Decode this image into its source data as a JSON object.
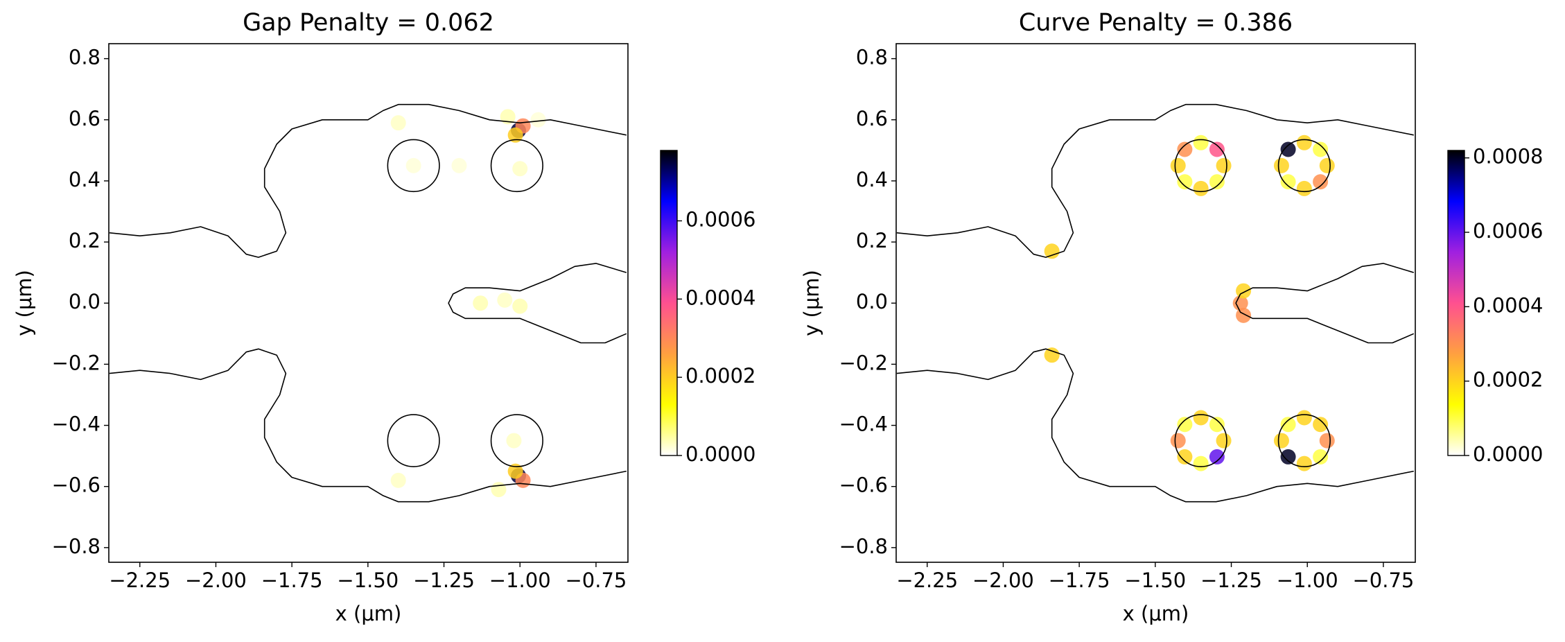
{
  "chart_data": [
    {
      "type": "heatmap",
      "title": "Gap Penalty = 0.062",
      "xlabel": "x (μm)",
      "ylabel": "y (μm)",
      "xlim": [
        -2.352,
        -0.645
      ],
      "ylim": [
        -0.848,
        0.849
      ],
      "xticks": [
        {
          "value": -2.25,
          "label": "−2.25"
        },
        {
          "value": -2,
          "label": "−2.00"
        },
        {
          "value": -1.75,
          "label": "−1.75"
        },
        {
          "value": -1.5,
          "label": "−1.50"
        },
        {
          "value": -1.25,
          "label": "−1.25"
        },
        {
          "value": -1,
          "label": "−1.00"
        },
        {
          "value": -0.75,
          "label": "−0.75"
        }
      ],
      "yticks": [
        {
          "value": -0.8,
          "label": "−0.8"
        },
        {
          "value": -0.6,
          "label": "−0.6"
        },
        {
          "value": -0.4,
          "label": "−0.4"
        },
        {
          "value": -0.2,
          "label": "−0.2"
        },
        {
          "value": 0,
          "label": "0.0"
        },
        0.2,
        0.4,
        0.6,
        0.8
      ],
      "contours": [
        {
          "x": [
            -2.35,
            -2.25,
            -2.15,
            -2.05,
            -1.96,
            -1.9,
            -1.86,
            -1.8,
            -1.77,
            -1.79,
            -1.84,
            -1.84,
            -1.8,
            -1.75,
            -1.65,
            -1.5,
            -1.45,
            -1.4,
            -1.3,
            -1.2,
            -1.1,
            -1.0,
            -0.9,
            -0.8,
            -0.65
          ],
          "y": [
            0.23,
            0.22,
            0.23,
            0.25,
            0.22,
            0.16,
            0.15,
            0.17,
            0.23,
            0.3,
            0.38,
            0.44,
            0.52,
            0.57,
            0.6,
            0.6,
            0.63,
            0.65,
            0.65,
            0.63,
            0.6,
            0.59,
            0.6,
            0.58,
            0.55
          ]
        },
        {
          "x": [
            -2.35,
            -2.25,
            -2.15,
            -2.05,
            -1.96,
            -1.9,
            -1.86,
            -1.8,
            -1.77,
            -1.79,
            -1.84,
            -1.84,
            -1.8,
            -1.75,
            -1.65,
            -1.5,
            -1.45,
            -1.4,
            -1.3,
            -1.2,
            -1.1,
            -1.0,
            -0.9,
            -0.8,
            -0.65
          ],
          "y": [
            -0.23,
            -0.22,
            -0.23,
            -0.25,
            -0.22,
            -0.16,
            -0.15,
            -0.17,
            -0.23,
            -0.3,
            -0.38,
            -0.44,
            -0.52,
            -0.57,
            -0.6,
            -0.6,
            -0.63,
            -0.65,
            -0.65,
            -0.63,
            -0.6,
            -0.59,
            -0.6,
            -0.58,
            -0.55
          ]
        },
        {
          "x": [
            -0.65,
            -0.75,
            -0.82,
            -0.9,
            -1.0,
            -1.1,
            -1.18,
            -1.22,
            -1.235,
            -1.22,
            -1.18,
            -1.1,
            -1.0,
            -0.9,
            -0.8,
            -0.72,
            -0.65
          ],
          "y": [
            0.1,
            0.13,
            0.12,
            0.08,
            0.04,
            0.05,
            0.05,
            0.03,
            0.0,
            -0.03,
            -0.05,
            -0.05,
            -0.05,
            -0.09,
            -0.13,
            -0.13,
            -0.1
          ]
        }
      ],
      "holes": {
        "x": [
          -1.35,
          -1.01,
          -1.35,
          -1.01
        ],
        "y": [
          0.45,
          0.45,
          -0.45,
          -0.45
        ],
        "r": [
          0.085,
          0.085,
          0.085,
          0.085
        ]
      },
      "hotspots": {
        "x": [
          -1.005,
          -0.99,
          -1.015,
          -1.04,
          -1.4,
          -1.13,
          -1.05,
          -1.0,
          -1.35,
          -1.0,
          -1.005,
          -0.99,
          -1.015,
          -1.07,
          -1.4,
          -1.02,
          -0.94,
          -1.2
        ],
        "y": [
          0.565,
          0.58,
          0.55,
          0.61,
          0.59,
          0.0,
          0.01,
          -0.01,
          0.45,
          0.44,
          -0.565,
          -0.58,
          -0.55,
          -0.61,
          -0.58,
          -0.45,
          0.6,
          0.45
        ],
        "values": [
          0.00075,
          0.0003,
          0.0002,
          4e-05,
          3e-05,
          4e-05,
          3e-05,
          4e-05,
          2e-05,
          3e-05,
          0.00075,
          0.0003,
          0.0002,
          4e-05,
          3e-05,
          3e-05,
          2e-05,
          2e-05
        ]
      },
      "clim": [
        0,
        0.00078
      ],
      "cticks": [
        {
          "value": 0,
          "label": "0.0000"
        },
        {
          "value": 0.0002,
          "label": "0.0002"
        },
        {
          "value": 0.0004,
          "label": "0.0004"
        },
        {
          "value": 0.0006,
          "label": "0.0006"
        }
      ],
      "cmap": [
        "#ffffff",
        "#ffff00",
        "#ffa040",
        "#ff5090",
        "#a020e0",
        "#0000ff",
        "#000000"
      ]
    },
    {
      "type": "heatmap",
      "title": "Curve Penalty = 0.386",
      "xlabel": "x (μm)",
      "ylabel": "y (μm)",
      "xlim": [
        -2.352,
        -0.645
      ],
      "ylim": [
        -0.848,
        0.849
      ],
      "xticks": [
        {
          "value": -2.25,
          "label": "−2.25"
        },
        {
          "value": -2,
          "label": "−2.00"
        },
        {
          "value": -1.75,
          "label": "−1.75"
        },
        {
          "value": -1.5,
          "label": "−1.50"
        },
        {
          "value": -1.25,
          "label": "−1.25"
        },
        {
          "value": -1,
          "label": "−1.00"
        },
        {
          "value": -0.75,
          "label": "−0.75"
        }
      ],
      "yticks": [
        {
          "value": -0.8,
          "label": "−0.8"
        },
        {
          "value": -0.6,
          "label": "−0.6"
        },
        {
          "value": -0.4,
          "label": "−0.4"
        },
        {
          "value": -0.2,
          "label": "−0.2"
        },
        {
          "value": 0,
          "label": "0.0"
        },
        0.2,
        0.4,
        0.6,
        0.8
      ],
      "contours": [
        {
          "x": [
            -2.35,
            -2.25,
            -2.15,
            -2.05,
            -1.96,
            -1.9,
            -1.86,
            -1.8,
            -1.77,
            -1.79,
            -1.84,
            -1.84,
            -1.8,
            -1.75,
            -1.65,
            -1.5,
            -1.45,
            -1.4,
            -1.3,
            -1.2,
            -1.1,
            -1.0,
            -0.9,
            -0.8,
            -0.65
          ],
          "y": [
            0.23,
            0.22,
            0.23,
            0.25,
            0.22,
            0.16,
            0.15,
            0.17,
            0.23,
            0.3,
            0.38,
            0.44,
            0.52,
            0.57,
            0.6,
            0.6,
            0.63,
            0.65,
            0.65,
            0.63,
            0.6,
            0.59,
            0.6,
            0.58,
            0.55
          ]
        },
        {
          "x": [
            -2.35,
            -2.25,
            -2.15,
            -2.05,
            -1.96,
            -1.9,
            -1.86,
            -1.8,
            -1.77,
            -1.79,
            -1.84,
            -1.84,
            -1.8,
            -1.75,
            -1.65,
            -1.5,
            -1.45,
            -1.4,
            -1.3,
            -1.2,
            -1.1,
            -1.0,
            -0.9,
            -0.8,
            -0.65
          ],
          "y": [
            -0.23,
            -0.22,
            -0.23,
            -0.25,
            -0.22,
            -0.16,
            -0.15,
            -0.17,
            -0.23,
            -0.3,
            -0.38,
            -0.44,
            -0.52,
            -0.57,
            -0.6,
            -0.6,
            -0.63,
            -0.65,
            -0.65,
            -0.63,
            -0.6,
            -0.59,
            -0.6,
            -0.58,
            -0.55
          ]
        },
        {
          "x": [
            -0.65,
            -0.75,
            -0.82,
            -0.9,
            -1.0,
            -1.1,
            -1.18,
            -1.22,
            -1.235,
            -1.22,
            -1.18,
            -1.1,
            -1.0,
            -0.9,
            -0.8,
            -0.72,
            -0.65
          ],
          "y": [
            0.1,
            0.13,
            0.12,
            0.08,
            0.04,
            0.05,
            0.05,
            0.03,
            0.0,
            -0.03,
            -0.05,
            -0.05,
            -0.05,
            -0.09,
            -0.13,
            -0.13,
            -0.1
          ]
        }
      ],
      "holes": {
        "x": [
          -1.35,
          -1.01,
          -1.35,
          -1.01
        ],
        "y": [
          0.45,
          0.45,
          -0.45,
          -0.45
        ],
        "r": [
          0.085,
          0.085,
          0.085,
          0.085
        ]
      },
      "hotspots": {
        "x": [
          -1.275,
          -1.297,
          -1.35,
          -1.403,
          -1.425,
          -1.403,
          -1.35,
          -1.297,
          -0.935,
          -0.957,
          -1.01,
          -1.063,
          -1.085,
          -1.063,
          -1.01,
          -0.957,
          -1.275,
          -1.297,
          -1.35,
          -1.403,
          -1.425,
          -1.403,
          -1.35,
          -1.297,
          -0.935,
          -0.957,
          -1.01,
          -1.063,
          -1.085,
          -1.063,
          -1.01,
          -0.957,
          -1.22,
          -1.21,
          -1.21,
          -1.84,
          -1.84
        ],
        "y": [
          0.45,
          0.503,
          0.525,
          0.503,
          0.45,
          0.397,
          0.375,
          0.397,
          0.45,
          0.503,
          0.525,
          0.503,
          0.45,
          0.397,
          0.375,
          0.397,
          -0.45,
          -0.503,
          -0.525,
          -0.503,
          -0.45,
          -0.397,
          -0.375,
          -0.397,
          -0.45,
          -0.503,
          -0.525,
          -0.503,
          -0.45,
          -0.397,
          -0.375,
          -0.397,
          0.0,
          0.04,
          -0.04,
          0.17,
          -0.17
        ],
        "values": [
          0.0002,
          0.0004,
          0.0001,
          0.0003,
          0.0002,
          0.0001,
          0.0002,
          0.0001,
          0.0002,
          0.0001,
          0.0002,
          0.0008,
          0.0002,
          0.0001,
          0.0002,
          0.0003,
          0.0002,
          0.0006,
          0.0001,
          0.0002,
          0.0003,
          0.0001,
          0.0002,
          0.0001,
          0.0003,
          0.0001,
          0.0002,
          0.0008,
          0.0002,
          0.0001,
          0.0002,
          0.0002,
          0.0003,
          0.0002,
          0.0003,
          0.0002,
          0.0002
        ]
      },
      "clim": [
        0,
        0.00082
      ],
      "cticks": [
        {
          "value": 0,
          "label": "0.0000"
        },
        {
          "value": 0.0002,
          "label": "0.0002"
        },
        {
          "value": 0.0004,
          "label": "0.0004"
        },
        {
          "value": 0.0006,
          "label": "0.0006"
        },
        {
          "value": 0.0008,
          "label": "0.0008"
        }
      ],
      "cmap": [
        "#ffffff",
        "#ffff00",
        "#ffa040",
        "#ff5090",
        "#a020e0",
        "#0000ff",
        "#000000"
      ]
    }
  ]
}
